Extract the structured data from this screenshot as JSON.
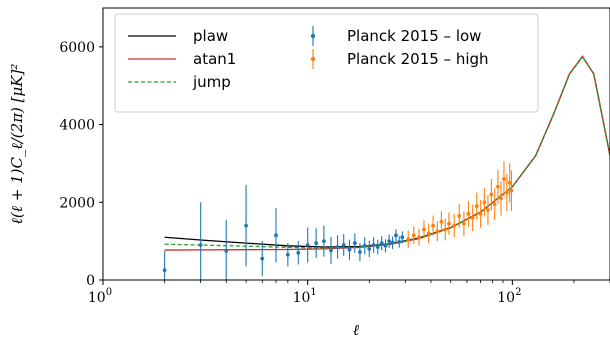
{
  "chart_data": {
    "type": "scatter",
    "xscale": "log",
    "xlim": [
      1,
      300
    ],
    "ylim": [
      0,
      7000
    ],
    "xlabel": "ℓ",
    "ylabel": "ℓ(ℓ + 1)C_ℓ/(2π) [μK]²",
    "xticks": [
      {
        "value": 1,
        "base": "10",
        "exp": "0"
      },
      {
        "value": 10,
        "base": "10",
        "exp": "1"
      },
      {
        "value": 100,
        "base": "10",
        "exp": "2"
      }
    ],
    "yticks": [
      0,
      2000,
      4000,
      6000
    ],
    "legend": {
      "position": "top-left",
      "entries": [
        {
          "label": "plaw",
          "kind": "line",
          "color": "#000000",
          "dash": "solid"
        },
        {
          "label": "atan1",
          "kind": "line",
          "color": "#d62728",
          "dash": "solid"
        },
        {
          "label": "jump",
          "kind": "line",
          "color": "#2ca02c",
          "dash": "dashed"
        },
        {
          "label": "Planck 2015 – low",
          "kind": "errorbar",
          "color": "#1f77b4"
        },
        {
          "label": "Planck 2015 – high",
          "kind": "errorbar",
          "color": "#ff7f0e"
        }
      ]
    },
    "series": [
      {
        "name": "plaw",
        "kind": "line",
        "color": "#000000",
        "x": [
          2,
          3,
          5,
          8,
          12,
          18,
          25,
          35,
          50,
          70,
          100,
          130,
          160,
          190,
          220,
          250,
          280,
          300
        ],
        "y": [
          1100,
          1030,
          950,
          880,
          850,
          860,
          930,
          1080,
          1350,
          1750,
          2400,
          3200,
          4300,
          5300,
          5750,
          5300,
          4000,
          3200
        ]
      },
      {
        "name": "atan1",
        "kind": "line",
        "color": "#d62728",
        "x": [
          2,
          3,
          5,
          8,
          12,
          18,
          25,
          35,
          50,
          70,
          100,
          130,
          160,
          190,
          220,
          250,
          280,
          300
        ],
        "y": [
          770,
          775,
          780,
          785,
          800,
          840,
          915,
          1065,
          1340,
          1745,
          2400,
          3200,
          4300,
          5300,
          5750,
          5300,
          4000,
          3200
        ]
      },
      {
        "name": "jump",
        "kind": "line",
        "color": "#2ca02c",
        "x": [
          2,
          3,
          5,
          8,
          12,
          18,
          25,
          35,
          50,
          70,
          100,
          130,
          160,
          190,
          220,
          250,
          280,
          300
        ],
        "y": [
          920,
          900,
          870,
          840,
          820,
          845,
          920,
          1070,
          1345,
          1748,
          2400,
          3200,
          4300,
          5300,
          5750,
          5300,
          4000,
          3200
        ]
      },
      {
        "name": "Planck 2015 – low",
        "kind": "errorbar",
        "color": "#1f77b4",
        "points": [
          {
            "x": 2,
            "y": 250,
            "err": 500
          },
          {
            "x": 3,
            "y": 900,
            "err": 1100
          },
          {
            "x": 4,
            "y": 750,
            "err": 800
          },
          {
            "x": 5,
            "y": 1400,
            "err": 1050
          },
          {
            "x": 6,
            "y": 550,
            "err": 450
          },
          {
            "x": 7,
            "y": 1150,
            "err": 700
          },
          {
            "x": 8,
            "y": 650,
            "err": 300
          },
          {
            "x": 9,
            "y": 700,
            "err": 300
          },
          {
            "x": 10,
            "y": 900,
            "err": 450
          },
          {
            "x": 11,
            "y": 950,
            "err": 380
          },
          {
            "x": 12,
            "y": 1000,
            "err": 400
          },
          {
            "x": 13,
            "y": 760,
            "err": 350
          },
          {
            "x": 14,
            "y": 850,
            "err": 300
          },
          {
            "x": 15,
            "y": 900,
            "err": 280
          },
          {
            "x": 16,
            "y": 780,
            "err": 260
          },
          {
            "x": 17,
            "y": 950,
            "err": 250
          },
          {
            "x": 18,
            "y": 720,
            "err": 230
          },
          {
            "x": 19,
            "y": 880,
            "err": 220
          },
          {
            "x": 20,
            "y": 800,
            "err": 210
          },
          {
            "x": 21,
            "y": 900,
            "err": 200
          },
          {
            "x": 22,
            "y": 850,
            "err": 190
          },
          {
            "x": 23,
            "y": 950,
            "err": 180
          },
          {
            "x": 24,
            "y": 880,
            "err": 170
          },
          {
            "x": 25,
            "y": 1000,
            "err": 170
          },
          {
            "x": 26,
            "y": 960,
            "err": 160
          },
          {
            "x": 27,
            "y": 1150,
            "err": 160
          },
          {
            "x": 28,
            "y": 980,
            "err": 150
          },
          {
            "x": 29,
            "y": 1100,
            "err": 150
          }
        ]
      },
      {
        "name": "Planck 2015 – high",
        "kind": "errorbar",
        "color": "#ff7f0e",
        "points": [
          {
            "x": 31,
            "y": 1050,
            "err": 220
          },
          {
            "x": 33,
            "y": 1150,
            "err": 230
          },
          {
            "x": 35,
            "y": 1100,
            "err": 220
          },
          {
            "x": 37,
            "y": 1300,
            "err": 240
          },
          {
            "x": 39,
            "y": 1200,
            "err": 250
          },
          {
            "x": 41,
            "y": 1400,
            "err": 260
          },
          {
            "x": 43,
            "y": 1250,
            "err": 260
          },
          {
            "x": 45,
            "y": 1500,
            "err": 270
          },
          {
            "x": 47,
            "y": 1300,
            "err": 280
          },
          {
            "x": 49,
            "y": 1450,
            "err": 290
          },
          {
            "x": 52,
            "y": 1400,
            "err": 300
          },
          {
            "x": 55,
            "y": 1650,
            "err": 310
          },
          {
            "x": 58,
            "y": 1450,
            "err": 320
          },
          {
            "x": 61,
            "y": 1700,
            "err": 330
          },
          {
            "x": 64,
            "y": 1600,
            "err": 340
          },
          {
            "x": 67,
            "y": 1900,
            "err": 350
          },
          {
            "x": 70,
            "y": 1700,
            "err": 360
          },
          {
            "x": 73,
            "y": 2000,
            "err": 370
          },
          {
            "x": 76,
            "y": 1800,
            "err": 380
          },
          {
            "x": 79,
            "y": 2200,
            "err": 400
          },
          {
            "x": 82,
            "y": 1950,
            "err": 410
          },
          {
            "x": 85,
            "y": 2400,
            "err": 430
          },
          {
            "x": 88,
            "y": 2100,
            "err": 440
          },
          {
            "x": 91,
            "y": 2600,
            "err": 460
          },
          {
            "x": 94,
            "y": 2250,
            "err": 480
          },
          {
            "x": 97,
            "y": 2500,
            "err": 500
          },
          {
            "x": 99,
            "y": 2300,
            "err": 520
          }
        ]
      }
    ]
  }
}
